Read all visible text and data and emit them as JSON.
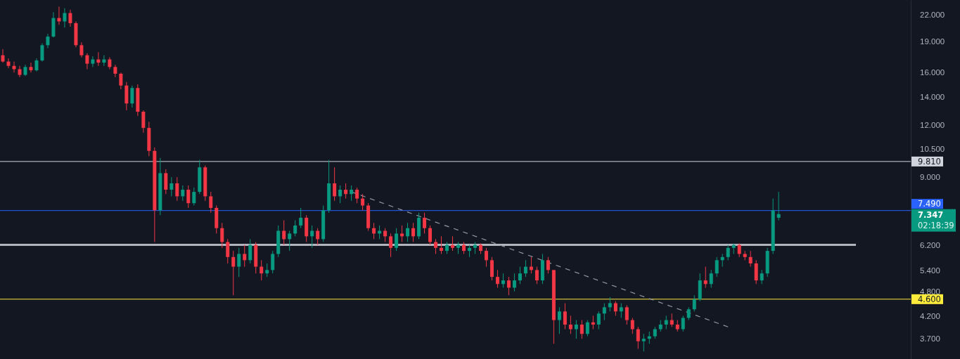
{
  "chart_data": {
    "type": "candlestick",
    "categories": [
      null,
      null,
      null,
      null,
      null,
      null,
      null,
      null,
      null,
      null,
      null,
      null,
      null,
      null,
      null,
      null,
      null,
      null,
      null,
      null,
      null,
      null,
      null,
      null,
      null,
      null,
      null,
      null,
      null,
      null,
      null,
      null,
      null,
      null,
      null,
      null,
      null,
      null,
      null,
      null,
      null,
      null,
      null,
      null,
      null,
      null,
      null,
      null,
      null,
      null,
      null,
      null,
      null,
      null,
      null,
      null,
      null,
      null,
      null,
      null,
      null,
      null,
      null,
      null,
      null,
      null,
      null,
      null,
      null,
      null,
      null,
      null,
      null,
      null,
      null,
      null,
      null,
      null,
      null,
      null,
      null,
      null,
      null,
      null,
      null,
      null,
      null,
      null,
      null,
      null,
      null,
      null,
      null,
      null,
      null,
      null,
      null,
      null,
      null,
      null,
      null,
      null,
      null,
      null,
      null,
      null,
      null,
      null,
      null,
      null,
      null,
      null,
      null,
      null,
      null,
      null,
      null,
      null,
      null,
      null,
      null,
      null,
      null,
      null,
      null,
      null,
      null,
      null,
      null,
      null,
      null,
      null,
      null,
      null,
      null,
      null,
      null,
      null,
      null,
      null,
      null,
      null,
      null,
      null,
      null,
      null,
      null,
      null,
      null,
      null,
      null,
      null,
      null,
      null,
      null,
      null,
      null,
      null,
      null,
      null,
      null,
      null
    ],
    "ohlc": [
      [
        17.6,
        18.2,
        16.9,
        17.0
      ],
      [
        17.0,
        17.3,
        16.4,
        16.6
      ],
      [
        16.6,
        17.0,
        16.0,
        16.3
      ],
      [
        16.3,
        16.6,
        15.6,
        15.8
      ],
      [
        15.8,
        16.7,
        15.7,
        16.5
      ],
      [
        16.5,
        16.9,
        16.0,
        16.2
      ],
      [
        16.2,
        17.3,
        16.1,
        17.1
      ],
      [
        17.1,
        18.8,
        17.0,
        18.6
      ],
      [
        18.6,
        19.8,
        18.3,
        19.5
      ],
      [
        19.5,
        22.3,
        19.4,
        21.6
      ],
      [
        21.6,
        23.0,
        20.8,
        21.2
      ],
      [
        21.2,
        22.8,
        20.5,
        22.2
      ],
      [
        22.2,
        22.6,
        20.6,
        21.0
      ],
      [
        21.0,
        21.2,
        18.4,
        18.6
      ],
      [
        18.6,
        18.9,
        17.4,
        17.6
      ],
      [
        17.6,
        17.8,
        16.3,
        16.8
      ],
      [
        16.8,
        17.5,
        16.5,
        17.2
      ],
      [
        17.2,
        17.9,
        16.6,
        16.9
      ],
      [
        16.9,
        17.6,
        16.6,
        17.2
      ],
      [
        17.2,
        17.4,
        16.3,
        16.5
      ],
      [
        16.5,
        16.7,
        15.6,
        15.9
      ],
      [
        15.9,
        16.0,
        14.6,
        14.9
      ],
      [
        14.9,
        15.2,
        13.0,
        13.5
      ],
      [
        13.5,
        14.9,
        13.2,
        14.7
      ],
      [
        14.7,
        15.0,
        12.6,
        12.9
      ],
      [
        12.9,
        13.0,
        11.5,
        11.8
      ],
      [
        11.8,
        12.2,
        10.1,
        10.4
      ],
      [
        10.4,
        10.6,
        6.3,
        7.5
      ],
      [
        7.5,
        10.0,
        7.3,
        9.2
      ],
      [
        9.2,
        9.4,
        8.2,
        8.4
      ],
      [
        8.4,
        9.0,
        8.1,
        8.7
      ],
      [
        8.7,
        9.0,
        7.9,
        8.1
      ],
      [
        8.1,
        8.6,
        7.9,
        8.4
      ],
      [
        8.4,
        8.6,
        7.6,
        7.8
      ],
      [
        7.8,
        8.5,
        7.7,
        8.3
      ],
      [
        8.3,
        9.9,
        8.2,
        9.5
      ],
      [
        9.5,
        9.6,
        7.9,
        8.1
      ],
      [
        8.1,
        8.3,
        7.4,
        7.6
      ],
      [
        7.6,
        7.7,
        6.6,
        6.8
      ],
      [
        6.8,
        7.0,
        6.1,
        6.3
      ],
      [
        6.3,
        6.4,
        5.6,
        5.8
      ],
      [
        5.8,
        6.0,
        4.7,
        5.5
      ],
      [
        5.5,
        6.1,
        5.2,
        5.9
      ],
      [
        5.9,
        6.2,
        5.5,
        5.7
      ],
      [
        5.7,
        6.4,
        5.6,
        6.2
      ],
      [
        6.2,
        6.3,
        5.3,
        5.5
      ],
      [
        5.5,
        5.7,
        5.1,
        5.3
      ],
      [
        5.3,
        5.6,
        5.2,
        5.4
      ],
      [
        5.4,
        6.0,
        5.3,
        5.9
      ],
      [
        5.9,
        6.9,
        5.8,
        6.7
      ],
      [
        6.7,
        7.1,
        6.2,
        6.4
      ],
      [
        6.4,
        6.7,
        6.0,
        6.6
      ],
      [
        6.6,
        7.1,
        6.5,
        6.9
      ],
      [
        6.9,
        7.6,
        6.8,
        7.2
      ],
      [
        7.2,
        7.3,
        6.3,
        6.5
      ],
      [
        6.5,
        6.9,
        6.1,
        6.7
      ],
      [
        6.7,
        6.8,
        6.2,
        6.4
      ],
      [
        6.4,
        7.7,
        6.3,
        7.5
      ],
      [
        7.5,
        9.9,
        7.4,
        8.7
      ],
      [
        8.7,
        9.5,
        7.9,
        8.1
      ],
      [
        8.1,
        8.6,
        7.8,
        8.4
      ],
      [
        8.4,
        8.7,
        8.0,
        8.2
      ],
      [
        8.2,
        8.6,
        7.9,
        8.4
      ],
      [
        8.4,
        8.5,
        7.8,
        8.0
      ],
      [
        8.0,
        8.2,
        7.5,
        7.7
      ],
      [
        7.7,
        7.8,
        6.7,
        6.8
      ],
      [
        6.8,
        7.0,
        6.4,
        6.6
      ],
      [
        6.6,
        6.9,
        6.4,
        6.7
      ],
      [
        6.7,
        6.8,
        6.3,
        6.5
      ],
      [
        6.5,
        6.6,
        5.8,
        6.1
      ],
      [
        6.1,
        6.8,
        6.0,
        6.6
      ],
      [
        6.6,
        6.9,
        6.3,
        6.5
      ],
      [
        6.5,
        7.0,
        6.3,
        6.8
      ],
      [
        6.8,
        7.0,
        6.3,
        6.5
      ],
      [
        6.5,
        7.4,
        6.4,
        7.2
      ],
      [
        7.2,
        7.4,
        6.6,
        6.8
      ],
      [
        6.8,
        6.9,
        6.2,
        6.3
      ],
      [
        6.3,
        6.4,
        5.9,
        6.1
      ],
      [
        6.1,
        6.5,
        5.9,
        6.0
      ],
      [
        6.0,
        6.3,
        5.9,
        6.2
      ],
      [
        6.2,
        6.5,
        6.0,
        6.1
      ],
      [
        6.1,
        6.3,
        5.9,
        6.2
      ],
      [
        6.2,
        6.3,
        5.9,
        6.0
      ],
      [
        6.0,
        6.2,
        5.8,
        6.1
      ],
      [
        6.1,
        6.3,
        5.9,
        6.2
      ],
      [
        6.2,
        6.25,
        5.9,
        6.0
      ],
      [
        6.0,
        6.1,
        5.5,
        5.7
      ],
      [
        5.7,
        5.8,
        5.1,
        5.2
      ],
      [
        5.2,
        5.4,
        4.9,
        5.0
      ],
      [
        5.0,
        5.3,
        4.9,
        5.1
      ],
      [
        5.1,
        5.2,
        4.7,
        4.9
      ],
      [
        4.9,
        5.3,
        4.8,
        5.1
      ],
      [
        5.1,
        5.5,
        5.0,
        5.3
      ],
      [
        5.3,
        5.7,
        5.2,
        5.5
      ],
      [
        5.5,
        5.8,
        5.3,
        5.4
      ],
      [
        5.4,
        5.5,
        5.0,
        5.1
      ],
      [
        5.1,
        5.9,
        5.0,
        5.7
      ],
      [
        5.7,
        5.8,
        5.3,
        5.4
      ],
      [
        5.4,
        5.4,
        3.6,
        4.1
      ],
      [
        4.1,
        4.4,
        3.8,
        4.3
      ],
      [
        4.3,
        4.5,
        3.9,
        4.0
      ],
      [
        4.0,
        4.2,
        3.8,
        3.9
      ],
      [
        3.9,
        4.1,
        3.7,
        4.0
      ],
      [
        4.0,
        4.1,
        3.7,
        3.8
      ],
      [
        3.8,
        4.1,
        3.75,
        4.05
      ],
      [
        4.05,
        4.2,
        3.9,
        4.0
      ],
      [
        4.0,
        4.3,
        3.9,
        4.25
      ],
      [
        4.25,
        4.5,
        4.1,
        4.4
      ],
      [
        4.4,
        4.65,
        4.3,
        4.5
      ],
      [
        4.5,
        4.55,
        4.2,
        4.3
      ],
      [
        4.3,
        4.5,
        4.15,
        4.4
      ],
      [
        4.4,
        4.45,
        4.0,
        4.1
      ],
      [
        4.1,
        4.15,
        3.8,
        3.9
      ],
      [
        3.9,
        3.95,
        3.5,
        3.65
      ],
      [
        3.65,
        3.8,
        3.45,
        3.7
      ],
      [
        3.7,
        3.85,
        3.6,
        3.75
      ],
      [
        3.75,
        3.95,
        3.7,
        3.9
      ],
      [
        3.9,
        4.1,
        3.85,
        4.0
      ],
      [
        4.0,
        4.2,
        3.9,
        4.1
      ],
      [
        4.1,
        4.25,
        3.95,
        4.0
      ],
      [
        4.0,
        4.1,
        3.85,
        3.9
      ],
      [
        3.9,
        4.2,
        3.85,
        4.15
      ],
      [
        4.15,
        4.4,
        4.1,
        4.35
      ],
      [
        4.35,
        4.7,
        4.3,
        4.6
      ],
      [
        4.6,
        5.3,
        4.55,
        5.1
      ],
      [
        5.1,
        5.5,
        4.9,
        5.0
      ],
      [
        5.0,
        5.4,
        4.9,
        5.3
      ],
      [
        5.3,
        5.8,
        5.2,
        5.7
      ],
      [
        5.7,
        5.9,
        5.5,
        5.8
      ],
      [
        5.8,
        6.2,
        5.7,
        6.1
      ],
      [
        6.1,
        6.25,
        5.9,
        6.2
      ],
      [
        6.2,
        6.25,
        5.8,
        5.9
      ],
      [
        5.9,
        6.0,
        5.7,
        5.8
      ],
      [
        5.8,
        6.0,
        5.5,
        5.6
      ],
      [
        5.6,
        5.7,
        5.0,
        5.1
      ],
      [
        5.1,
        5.4,
        5.0,
        5.3
      ],
      [
        5.3,
        6.1,
        5.2,
        6.0
      ],
      [
        6.0,
        8.0,
        5.9,
        7.5
      ],
      [
        7.2,
        8.3,
        7.1,
        7.347
      ],
      null,
      null,
      null,
      null,
      null,
      null,
      null,
      null,
      null,
      null,
      null,
      null,
      null,
      null,
      null,
      null,
      null,
      null,
      null,
      null,
      null,
      null,
      null
    ],
    "colors": [
      "#f23645",
      "#f23645",
      "#f23645",
      "#f23645",
      "#089981",
      "#f23645",
      "#089981",
      "#089981",
      "#089981",
      "#089981",
      "#f23645",
      "#089981",
      "#f23645",
      "#f23645",
      "#f23645",
      "#f23645",
      "#089981",
      "#f23645",
      "#089981",
      "#f23645",
      "#f23645",
      "#f23645",
      "#f23645",
      "#089981",
      "#f23645",
      "#f23645",
      "#f23645",
      "#f23645",
      "#089981",
      "#f23645",
      "#089981",
      "#f23645",
      "#089981",
      "#f23645",
      "#089981",
      "#089981",
      "#f23645",
      "#f23645",
      "#f23645",
      "#f23645",
      "#f23645",
      "#f23645",
      "#089981",
      "#f23645",
      "#089981",
      "#f23645",
      "#f23645",
      "#089981",
      "#089981",
      "#089981",
      "#f23645",
      "#089981",
      "#089981",
      "#089981",
      "#f23645",
      "#089981",
      "#f23645",
      "#089981",
      "#089981",
      "#f23645",
      "#089981",
      "#f23645",
      "#089981",
      "#f23645",
      "#f23645",
      "#f23645",
      "#f23645",
      "#089981",
      "#f23645",
      "#f23645",
      "#089981",
      "#f23645",
      "#089981",
      "#f23645",
      "#089981",
      "#f23645",
      "#f23645",
      "#f23645",
      "#f23645",
      "#089981",
      "#f23645",
      "#089981",
      "#f23645",
      "#089981",
      "#089981",
      "#f23645",
      "#f23645",
      "#f23645",
      "#f23645",
      "#089981",
      "#f23645",
      "#089981",
      "#089981",
      "#089981",
      "#f23645",
      "#f23645",
      "#089981",
      "#f23645",
      "#f23645",
      "#089981",
      "#f23645",
      "#f23645",
      "#089981",
      "#f23645",
      "#089981",
      "#f23645",
      "#089981",
      "#089981",
      "#089981",
      "#f23645",
      "#089981",
      "#f23645",
      "#f23645",
      "#f23645",
      "#089981",
      "#089981",
      "#089981",
      "#089981",
      "#089981",
      "#f23645",
      "#f23645",
      "#089981",
      "#089981",
      "#089981",
      "#089981",
      "#f23645",
      "#089981",
      "#089981",
      "#089981",
      "#089981",
      "#089981",
      "#f23645",
      "#f23645",
      "#f23645",
      "#f23645",
      "#089981",
      "#089981",
      "#089981",
      "#089981",
      null,
      null,
      null,
      null,
      null,
      null,
      null,
      null,
      null,
      null,
      null,
      null,
      null,
      null,
      null,
      null,
      null,
      null,
      null,
      null,
      null,
      null,
      null
    ],
    "series": [
      {
        "type": "line",
        "color": "#9598a1",
        "line_style": "dashed",
        "values": [
          null,
          null,
          null,
          null,
          null,
          null,
          null,
          null,
          null,
          null,
          null,
          null,
          null,
          null,
          null,
          null,
          null,
          null,
          null,
          null,
          null,
          null,
          null,
          null,
          null,
          null,
          null,
          null,
          null,
          null,
          null,
          null,
          null,
          null,
          null,
          null,
          null,
          null,
          null,
          null,
          null,
          null,
          null,
          null,
          null,
          null,
          null,
          null,
          null,
          null,
          null,
          null,
          null,
          null,
          null,
          null,
          null,
          null,
          null,
          null,
          null,
          null,
          8.3,
          null,
          null,
          null,
          null,
          null,
          null,
          null,
          null,
          null,
          null,
          null,
          null,
          null,
          null,
          null,
          null,
          null,
          null,
          null,
          null,
          null,
          null,
          null,
          null,
          null,
          null,
          null,
          null,
          null,
          null,
          null,
          null,
          null,
          null,
          null,
          null,
          null,
          null,
          null,
          null,
          null,
          null,
          null,
          null,
          null,
          null,
          null,
          null,
          null,
          null,
          null,
          null,
          null,
          null,
          null,
          null,
          null,
          null,
          null,
          null,
          null,
          null,
          null,
          null,
          null,
          null,
          3.95,
          null,
          null,
          null,
          null,
          null,
          null,
          null,
          null,
          null,
          null,
          null,
          null,
          null,
          null,
          null,
          null,
          null,
          null,
          null,
          null,
          null,
          null,
          null,
          null,
          null,
          null,
          null,
          null,
          null,
          null,
          null,
          null
        ]
      }
    ],
    "log": true,
    "ylim": [
      3.31,
      23.85
    ],
    "yticks": [
      {
        "value": 3.7,
        "label": "3.700"
      },
      {
        "value": 4.2,
        "label": "4.200"
      },
      {
        "value": 4.8,
        "label": "4.800"
      },
      {
        "value": 5.4,
        "label": "5.400"
      },
      {
        "value": 6.2,
        "label": "6.200"
      },
      {
        "value": 9,
        "label": "9.000"
      },
      {
        "value": 10.5,
        "label": "10.500"
      },
      {
        "value": 12,
        "label": "12.000"
      },
      {
        "value": 14,
        "label": "14.000"
      },
      {
        "value": 16,
        "label": "16.000"
      },
      {
        "value": 19,
        "label": "19.000"
      },
      {
        "value": 22,
        "label": "22.000"
      }
    ],
    "tick_labels": "y",
    "ref_lines": [
      {
        "axis": "y",
        "value": 9.81,
        "label": "9.810",
        "color": "#d1d4dc"
      },
      {
        "axis": "y",
        "value": 7.49,
        "label": "7.490",
        "color": "#2962ff"
      },
      {
        "axis": "y",
        "value": 6.2,
        "label": null,
        "color": "#b2b5be"
      },
      {
        "axis": "y",
        "value": 4.6,
        "label": "4.600",
        "color": "#ffeb3b"
      }
    ],
    "annotations": [
      "7.347",
      "02:18:39"
    ]
  }
}
